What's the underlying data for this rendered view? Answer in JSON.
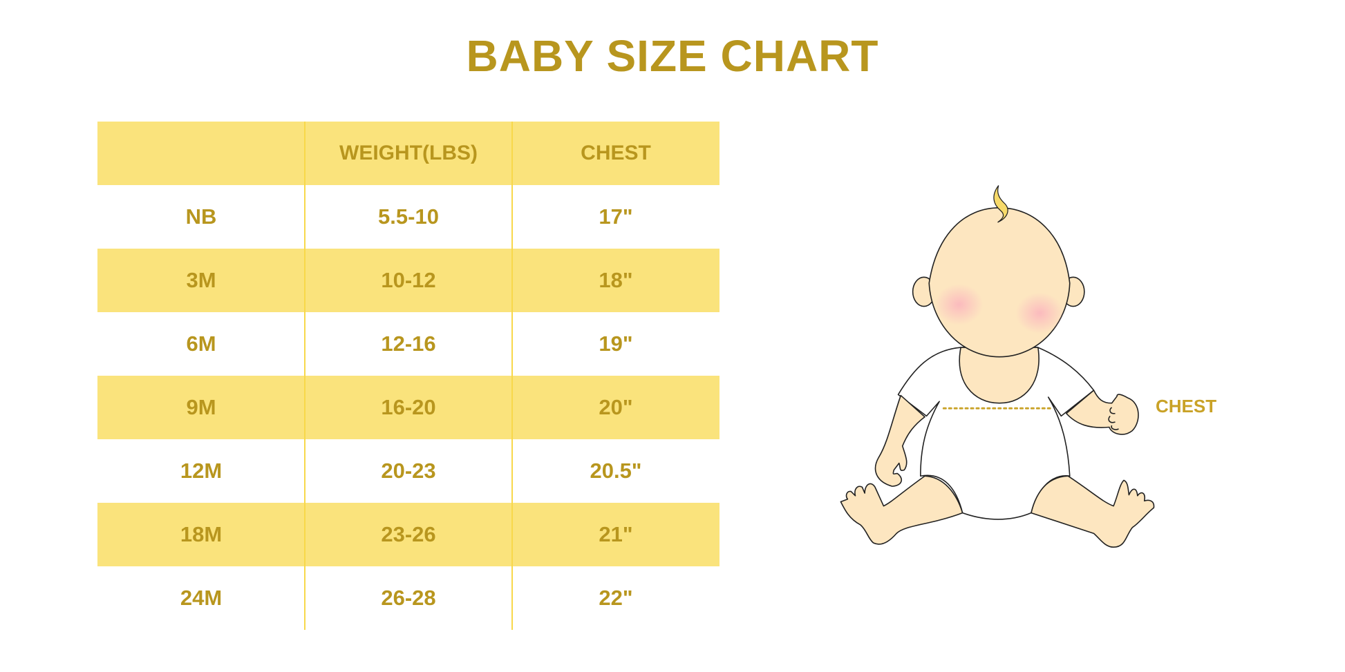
{
  "title": "BABY SIZE CHART",
  "colors": {
    "gold": "#B8961E",
    "row_yellow": "#FAE37C",
    "skin": "#FDE6C0",
    "hair": "#F7DA6A"
  },
  "table": {
    "headers": [
      "",
      "WEIGHT(LBS)",
      "CHEST"
    ],
    "rows": [
      [
        "NB",
        "5.5-10",
        "17\""
      ],
      [
        "3M",
        "10-12",
        "18\""
      ],
      [
        "6M",
        "12-16",
        "19\""
      ],
      [
        "9M",
        "16-20",
        "20\""
      ],
      [
        "12M",
        "20-23",
        "20.5\""
      ],
      [
        "18M",
        "23-26",
        "21\""
      ],
      [
        "24M",
        "26-28",
        "22\""
      ]
    ]
  },
  "illustration": {
    "chest_label": "CHEST"
  }
}
